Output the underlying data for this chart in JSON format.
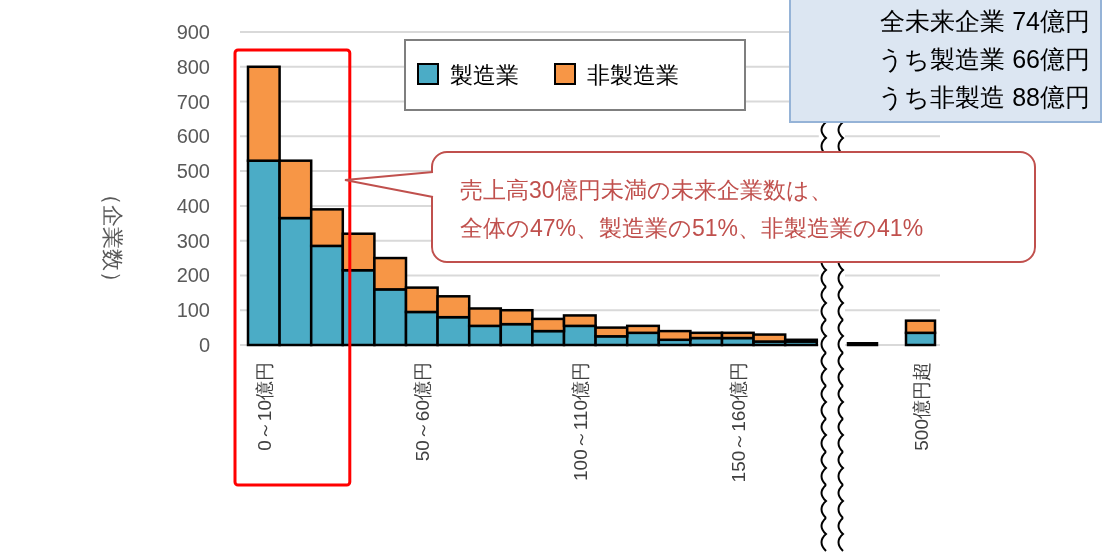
{
  "chart_data": {
    "type": "bar",
    "stacked": true,
    "ylabel": "（企業数）",
    "categories": [
      "0～10億円",
      null,
      null,
      null,
      null,
      "50～60億円",
      null,
      null,
      null,
      null,
      "100～110億円",
      null,
      null,
      null,
      null,
      "150～160億円",
      null,
      null,
      null,
      null,
      "500億円超"
    ],
    "series": [
      {
        "name": "製造業",
        "color": "#4bacc6",
        "values": [
          530,
          365,
          285,
          215,
          160,
          95,
          80,
          55,
          60,
          40,
          55,
          25,
          35,
          15,
          20,
          20,
          10,
          10,
          5,
          0,
          35
        ]
      },
      {
        "name": "非製造業",
        "color": "#f79646",
        "values": [
          270,
          165,
          105,
          105,
          90,
          70,
          60,
          50,
          40,
          35,
          30,
          25,
          20,
          25,
          15,
          15,
          20,
          5,
          0,
          0,
          35
        ]
      }
    ],
    "ylim": [
      0,
      900
    ],
    "yticks": [
      0,
      100,
      200,
      300,
      400,
      500,
      600,
      700,
      800,
      900
    ],
    "grid": "y",
    "legend": "top",
    "annotations": [
      "売上高30億円未満の未来企業数は、",
      "全体の47%、製造業の51%、非製造業の41%",
      "全未来企業 74億円",
      "うち製造業 66億円",
      "うち非製造 88億円"
    ]
  }
}
